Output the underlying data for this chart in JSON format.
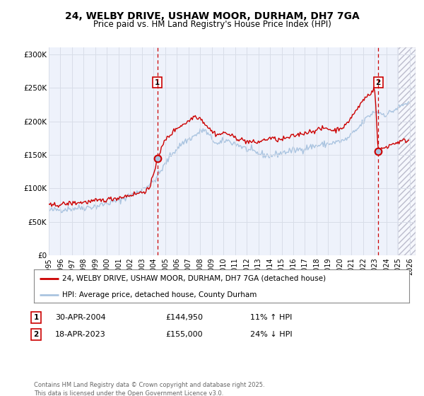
{
  "title": "24, WELBY DRIVE, USHAW MOOR, DURHAM, DH7 7GA",
  "subtitle": "Price paid vs. HM Land Registry's House Price Index (HPI)",
  "ylim": [
    0,
    310000
  ],
  "xlim_start": 1995.0,
  "xlim_end": 2026.5,
  "yticks": [
    0,
    50000,
    100000,
    150000,
    200000,
    250000,
    300000
  ],
  "ytick_labels": [
    "£0",
    "£50K",
    "£100K",
    "£150K",
    "£200K",
    "£250K",
    "£300K"
  ],
  "xticks": [
    1995,
    1996,
    1997,
    1998,
    1999,
    2000,
    2001,
    2002,
    2003,
    2004,
    2005,
    2006,
    2007,
    2008,
    2009,
    2010,
    2011,
    2012,
    2013,
    2014,
    2015,
    2016,
    2017,
    2018,
    2019,
    2020,
    2021,
    2022,
    2023,
    2024,
    2025,
    2026
  ],
  "marker1_x": 2004.33,
  "marker1_y": 144950,
  "marker2_x": 2023.29,
  "marker2_y": 155000,
  "legend_line1": "24, WELBY DRIVE, USHAW MOOR, DURHAM, DH7 7GA (detached house)",
  "legend_line2": "HPI: Average price, detached house, County Durham",
  "sale1_date": "30-APR-2004",
  "sale1_price": "£144,950",
  "sale1_hpi": "11% ↑ HPI",
  "sale2_date": "18-APR-2023",
  "sale2_price": "£155,000",
  "sale2_hpi": "24% ↓ HPI",
  "footer": "Contains HM Land Registry data © Crown copyright and database right 2025.\nThis data is licensed under the Open Government Licence v3.0.",
  "line_color_red": "#cc0000",
  "line_color_blue": "#aac4e0",
  "background_plot": "#eef2fb",
  "background_fig": "#ffffff",
  "grid_color": "#d8dde8",
  "vline_color": "#cc0000",
  "hatch_start": 2025.0
}
